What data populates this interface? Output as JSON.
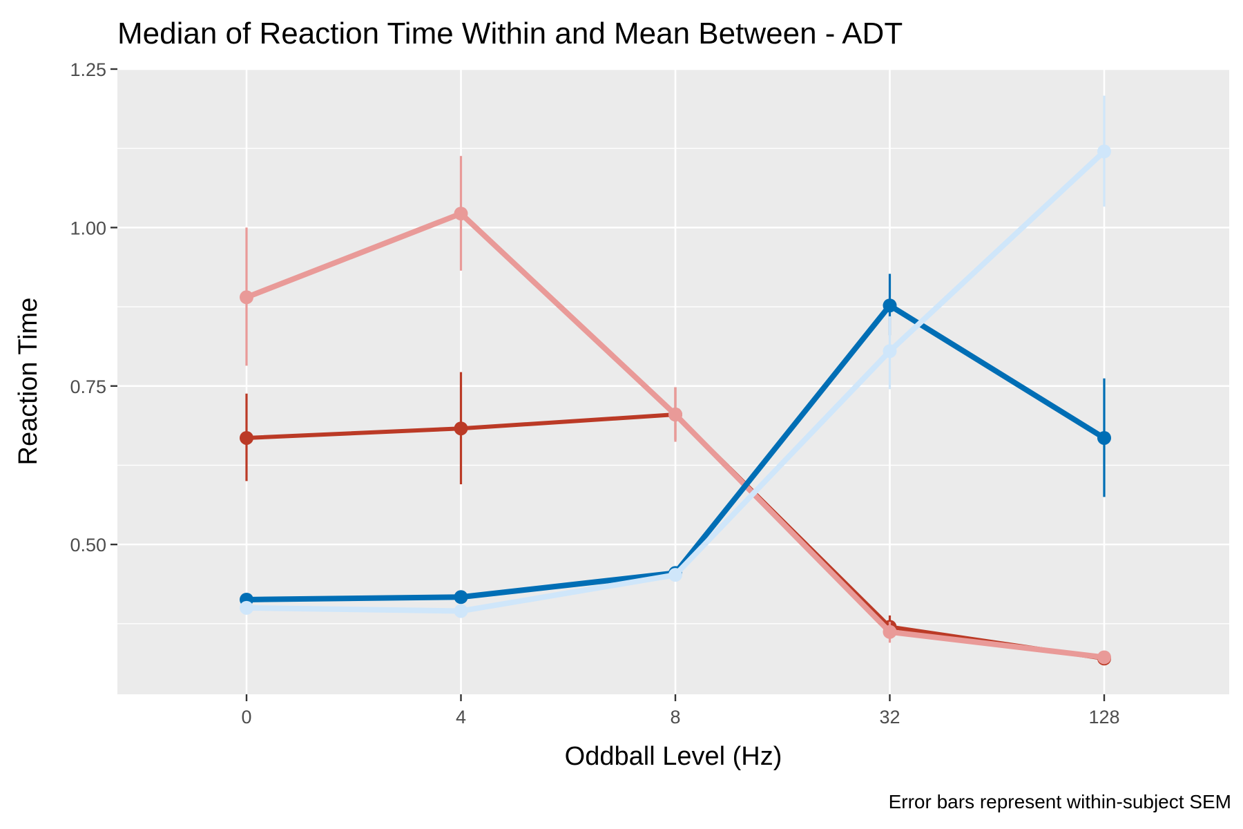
{
  "chart_data": {
    "type": "line",
    "title": "Median of Reaction Time Within and Mean Between - ADT",
    "xlabel": "Oddball Level (Hz)",
    "ylabel": "Reaction Time",
    "caption": "Error bars represent within-subject SEM",
    "categories": [
      "0",
      "4",
      "8",
      "32",
      "128"
    ],
    "ylim": [
      0.3,
      1.25
    ],
    "yticks": [
      0.5,
      0.75,
      1.0,
      1.25
    ],
    "yticklabels": [
      "0.50",
      "0.75",
      "1.00",
      "1.25"
    ],
    "grid": true,
    "panel_background": "#ebebeb",
    "series": [
      {
        "color": "#bb3a26",
        "line_weight": "medium",
        "values": [
          0.668,
          0.683,
          0.705,
          0.37,
          0.32
        ],
        "err_low": [
          0.6,
          0.595,
          0.665,
          0.355,
          0.315
        ],
        "err_high": [
          0.738,
          0.772,
          0.748,
          0.388,
          0.325
        ]
      },
      {
        "color": "#e99a98",
        "line_weight": "thick",
        "values": [
          0.89,
          1.022,
          0.705,
          0.362,
          0.322
        ],
        "err_low": [
          0.782,
          0.932,
          0.662,
          0.345,
          0.318
        ],
        "err_high": [
          1.0,
          1.113,
          0.748,
          0.378,
          0.326
        ]
      },
      {
        "color": "#006eb5",
        "line_weight": "thick",
        "values": [
          0.413,
          0.417,
          0.455,
          0.877,
          0.668
        ],
        "err_low": [
          0.41,
          0.413,
          0.45,
          0.83,
          0.575
        ],
        "err_high": [
          0.416,
          0.421,
          0.46,
          0.927,
          0.762
        ]
      },
      {
        "color": "#cfe6fa",
        "line_weight": "thick",
        "values": [
          0.4,
          0.395,
          0.452,
          0.805,
          1.12
        ],
        "err_low": [
          0.397,
          0.39,
          0.447,
          0.745,
          1.033
        ],
        "err_high": [
          0.403,
          0.4,
          0.457,
          0.86,
          1.208
        ]
      }
    ]
  }
}
